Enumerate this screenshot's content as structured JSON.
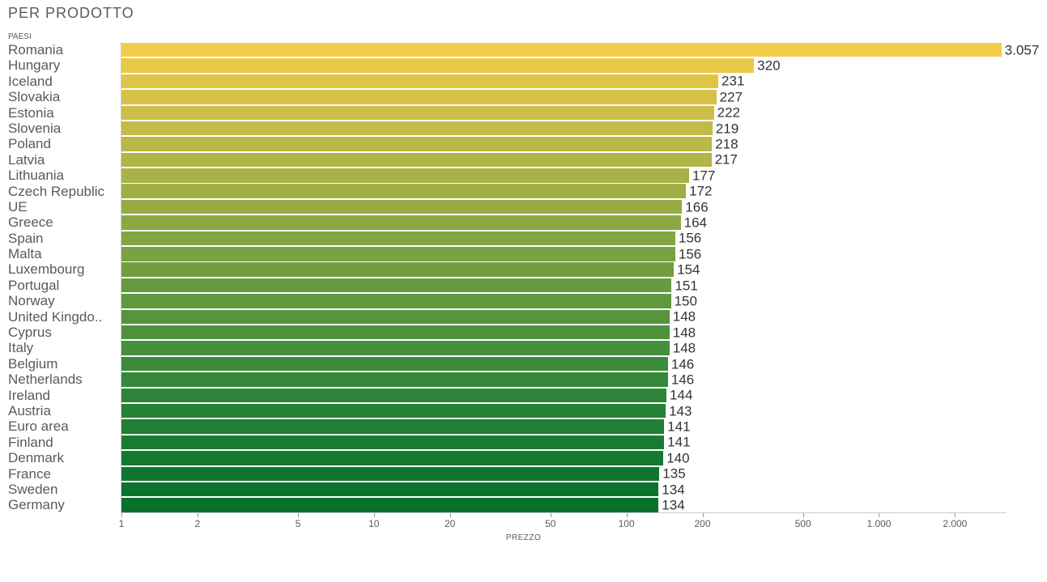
{
  "chart": {
    "type": "bar",
    "title": "PER PRODOTTO",
    "ylabel": "PAESI",
    "xlabel": "PREZZO",
    "background_color": "#ffffff",
    "title_fontsize": 18,
    "label_fontsize": 17,
    "value_fontsize": 17,
    "axis_fontsize": 12,
    "small_label_fontsize": 10,
    "title_color": "#5a5a5a",
    "text_color": "#5a5a5a",
    "value_text_color": "#333333",
    "axis_line_color": "#cccccc",
    "bar_heightfrac": 0.9,
    "xscale": "log",
    "xlim": [
      1,
      3200
    ],
    "xticks": [
      1,
      2,
      5,
      10,
      20,
      50,
      100,
      200,
      500,
      1000,
      2000
    ],
    "xtick_labels": [
      "1",
      "2",
      "5",
      "10",
      "20",
      "50",
      "100",
      "200",
      "500",
      "1.000",
      "2.000"
    ],
    "rows": [
      {
        "label": "Romania",
        "value": 3057,
        "display": "3.057",
        "color": "#f2cc49"
      },
      {
        "label": "Hungary",
        "value": 320,
        "display": "320",
        "color": "#e9c847"
      },
      {
        "label": "Iceland",
        "value": 231,
        "display": "231",
        "color": "#dec548"
      },
      {
        "label": "Slovakia",
        "value": 227,
        "display": "227",
        "color": "#d5c148"
      },
      {
        "label": "Estonia",
        "value": 222,
        "display": "222",
        "color": "#ccbe48"
      },
      {
        "label": "Slovenia",
        "value": 219,
        "display": "219",
        "color": "#c3bb48"
      },
      {
        "label": "Poland",
        "value": 218,
        "display": "218",
        "color": "#bab847"
      },
      {
        "label": "Latvia",
        "value": 217,
        "display": "217",
        "color": "#b1b546"
      },
      {
        "label": "Lithuania",
        "value": 177,
        "display": "177",
        "color": "#a8b246"
      },
      {
        "label": "Czech Republic",
        "value": 172,
        "display": "172",
        "color": "#9fae45"
      },
      {
        "label": "UE",
        "value": 166,
        "display": "166",
        "color": "#96ab44"
      },
      {
        "label": "Greece",
        "value": 164,
        "display": "164",
        "color": "#8ca844"
      },
      {
        "label": "Spain",
        "value": 156,
        "display": "156",
        "color": "#83a543"
      },
      {
        "label": "Malta",
        "value": 156,
        "display": "156",
        "color": "#7aa242"
      },
      {
        "label": "Luxembourg",
        "value": 154,
        "display": "154",
        "color": "#719e41"
      },
      {
        "label": "Portugal",
        "value": 151,
        "display": "151",
        "color": "#689b40"
      },
      {
        "label": "Norway",
        "value": 150,
        "display": "150",
        "color": "#5f983f"
      },
      {
        "label": "United Kingdo..",
        "value": 148,
        "display": "148",
        "color": "#56953e"
      },
      {
        "label": "Cyprus",
        "value": 148,
        "display": "148",
        "color": "#4d923d"
      },
      {
        "label": "Italy",
        "value": 148,
        "display": "148",
        "color": "#448e3c"
      },
      {
        "label": "Belgium",
        "value": 146,
        "display": "146",
        "color": "#3b8b3b"
      },
      {
        "label": "Netherlands",
        "value": 146,
        "display": "146",
        "color": "#33883a"
      },
      {
        "label": "Ireland",
        "value": 144,
        "display": "144",
        "color": "#2b8538"
      },
      {
        "label": "Austria",
        "value": 143,
        "display": "143",
        "color": "#248237"
      },
      {
        "label": "Euro area",
        "value": 141,
        "display": "141",
        "color": "#1e7f35"
      },
      {
        "label": "Finland",
        "value": 141,
        "display": "141",
        "color": "#197c33"
      },
      {
        "label": "Denmark",
        "value": 140,
        "display": "140",
        "color": "#147931"
      },
      {
        "label": "France",
        "value": 135,
        "display": "135",
        "color": "#10762f"
      },
      {
        "label": "Sweden",
        "value": 134,
        "display": "134",
        "color": "#0c732d"
      },
      {
        "label": "Germany",
        "value": 134,
        "display": "134",
        "color": "#09702b"
      }
    ]
  }
}
